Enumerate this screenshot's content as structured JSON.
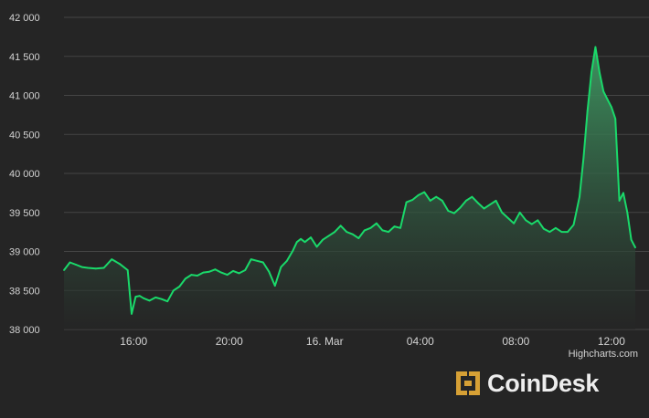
{
  "chart_data": {
    "type": "area",
    "title": "",
    "xlabel": "",
    "ylabel": "",
    "grid": true,
    "legend": "none",
    "ylim": [
      38000,
      42000
    ],
    "yticks": [
      38000,
      38500,
      39000,
      39500,
      40000,
      40500,
      41000,
      41500,
      42000
    ],
    "ytick_labels": [
      "38 000",
      "38 500",
      "39 000",
      "39 500",
      "40 000",
      "40 500",
      "41 000",
      "41 500",
      "42 000"
    ],
    "xlim": [
      "2021-03-15T13:05",
      "2021-03-16T13:00"
    ],
    "xtick_labels": [
      {
        "x": "2021-03-15T16:00",
        "label": "16:00"
      },
      {
        "x": "2021-03-15T20:00",
        "label": "20:00"
      },
      {
        "x": "2021-03-16T00:00",
        "label": "16. Mar"
      },
      {
        "x": "2021-03-16T04:00",
        "label": "04:00"
      },
      {
        "x": "2021-03-16T08:00",
        "label": "08:00"
      },
      {
        "x": "2021-03-16T12:00",
        "label": "12:00"
      }
    ],
    "series": [
      {
        "x": [
          "2021-03-15T13:05",
          "2021-03-15T13:20",
          "2021-03-15T13:35",
          "2021-03-15T13:50",
          "2021-03-15T14:05",
          "2021-03-15T14:25",
          "2021-03-15T14:45",
          "2021-03-15T15:05",
          "2021-03-15T15:25",
          "2021-03-15T15:45",
          "2021-03-15T15:55",
          "2021-03-15T16:05",
          "2021-03-15T16:15",
          "2021-03-15T16:25",
          "2021-03-15T16:40",
          "2021-03-15T16:55",
          "2021-03-15T17:10",
          "2021-03-15T17:25",
          "2021-03-15T17:40",
          "2021-03-15T17:55",
          "2021-03-15T18:10",
          "2021-03-15T18:25",
          "2021-03-15T18:40",
          "2021-03-15T18:55",
          "2021-03-15T19:10",
          "2021-03-15T19:25",
          "2021-03-15T19:40",
          "2021-03-15T19:55",
          "2021-03-15T20:10",
          "2021-03-15T20:25",
          "2021-03-15T20:40",
          "2021-03-15T20:55",
          "2021-03-15T21:10",
          "2021-03-15T21:25",
          "2021-03-15T21:40",
          "2021-03-15T21:55",
          "2021-03-15T22:10",
          "2021-03-15T22:25",
          "2021-03-15T22:40",
          "2021-03-15T22:50",
          "2021-03-15T23:00",
          "2021-03-15T23:10",
          "2021-03-15T23:25",
          "2021-03-15T23:40",
          "2021-03-15T23:55",
          "2021-03-16T00:10",
          "2021-03-16T00:25",
          "2021-03-16T00:40",
          "2021-03-16T00:55",
          "2021-03-16T01:10",
          "2021-03-16T01:25",
          "2021-03-16T01:40",
          "2021-03-16T01:55",
          "2021-03-16T02:10",
          "2021-03-16T02:25",
          "2021-03-16T02:40",
          "2021-03-16T02:55",
          "2021-03-16T03:10",
          "2021-03-16T03:25",
          "2021-03-16T03:40",
          "2021-03-16T03:55",
          "2021-03-16T04:10",
          "2021-03-16T04:25",
          "2021-03-16T04:40",
          "2021-03-16T04:55",
          "2021-03-16T05:10",
          "2021-03-16T05:25",
          "2021-03-16T05:40",
          "2021-03-16T05:55",
          "2021-03-16T06:10",
          "2021-03-16T06:25",
          "2021-03-16T06:40",
          "2021-03-16T06:55",
          "2021-03-16T07:10",
          "2021-03-16T07:25",
          "2021-03-16T07:40",
          "2021-03-16T07:55",
          "2021-03-16T08:10",
          "2021-03-16T08:25",
          "2021-03-16T08:40",
          "2021-03-16T08:55",
          "2021-03-16T09:10",
          "2021-03-16T09:25",
          "2021-03-16T09:40",
          "2021-03-16T09:55",
          "2021-03-16T10:10",
          "2021-03-16T10:25",
          "2021-03-16T10:40",
          "2021-03-16T10:50",
          "2021-03-16T11:00",
          "2021-03-16T11:10",
          "2021-03-16T11:20",
          "2021-03-16T11:30",
          "2021-03-16T11:40",
          "2021-03-16T11:50",
          "2021-03-16T12:00",
          "2021-03-16T12:10",
          "2021-03-16T12:20",
          "2021-03-16T12:30",
          "2021-03-16T12:40",
          "2021-03-16T12:50",
          "2021-03-16T13:00"
        ],
        "values": [
          38760,
          38860,
          38830,
          38800,
          38790,
          38780,
          38790,
          38900,
          38840,
          38760,
          38200,
          38420,
          38430,
          38400,
          38370,
          38410,
          38390,
          38360,
          38500,
          38550,
          38650,
          38700,
          38690,
          38730,
          38740,
          38770,
          38730,
          38700,
          38750,
          38720,
          38760,
          38900,
          38880,
          38860,
          38740,
          38560,
          38800,
          38880,
          39010,
          39120,
          39160,
          39120,
          39180,
          39060,
          39150,
          39200,
          39250,
          39330,
          39250,
          39220,
          39170,
          39270,
          39300,
          39360,
          39270,
          39250,
          39320,
          39300,
          39630,
          39660,
          39720,
          39760,
          39650,
          39700,
          39650,
          39520,
          39490,
          39560,
          39650,
          39700,
          39620,
          39550,
          39600,
          39650,
          39500,
          39430,
          39360,
          39500,
          39400,
          39350,
          39400,
          39290,
          39250,
          39300,
          39250,
          39250,
          39340,
          39700,
          40200,
          40800,
          41300,
          41620,
          41300,
          41050,
          40950,
          40850,
          40700,
          39650,
          39750,
          39500,
          39150,
          39050
        ]
      }
    ]
  },
  "credits": "Highcharts.com",
  "brand": {
    "logo_text": "CoinDesk",
    "icon": "coindesk-logo-icon"
  },
  "colors": {
    "background": "#252525",
    "grid": "#454545",
    "line": "#1ad96a",
    "area_top": "#3f9a63",
    "axis_text": "#d2d2d2",
    "logo_gold": "#d6a035"
  }
}
